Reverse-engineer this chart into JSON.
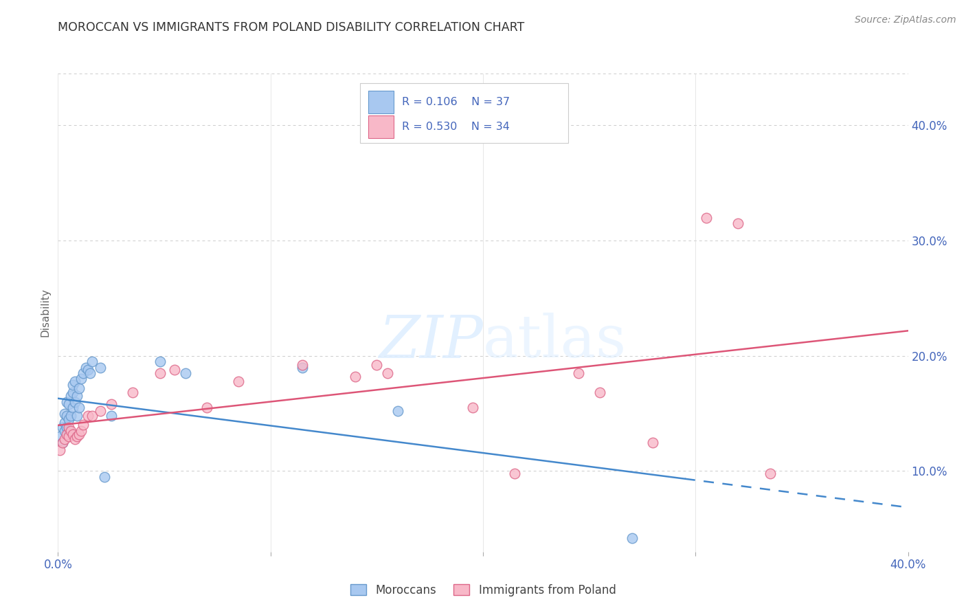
{
  "title": "MOROCCAN VS IMMIGRANTS FROM POLAND DISABILITY CORRELATION CHART",
  "source": "Source: ZipAtlas.com",
  "ylabel": "Disability",
  "ytick_vals": [
    0.1,
    0.2,
    0.3,
    0.4
  ],
  "xlim": [
    0.0,
    0.4
  ],
  "ylim": [
    0.03,
    0.445
  ],
  "legend_moroccan": "Moroccans",
  "legend_poland": "Immigrants from Poland",
  "r_moroccan": "0.106",
  "n_moroccan": "37",
  "r_poland": "0.530",
  "n_poland": "34",
  "color_moroccan_fill": "#a8c8f0",
  "color_moroccan_edge": "#6699cc",
  "color_poland_fill": "#f8b8c8",
  "color_poland_edge": "#dd6688",
  "color_moroccan_line": "#4488cc",
  "color_poland_line": "#dd5577",
  "color_axis_text": "#4466bb",
  "color_title": "#333333",
  "color_source": "#888888",
  "color_ylabel": "#666666",
  "background_color": "#ffffff",
  "grid_color": "#cccccc",
  "moroccan_x": [
    0.001,
    0.002,
    0.002,
    0.003,
    0.003,
    0.003,
    0.004,
    0.004,
    0.004,
    0.005,
    0.005,
    0.005,
    0.006,
    0.006,
    0.007,
    0.007,
    0.007,
    0.008,
    0.008,
    0.009,
    0.009,
    0.01,
    0.01,
    0.011,
    0.012,
    0.013,
    0.014,
    0.015,
    0.016,
    0.02,
    0.022,
    0.025,
    0.048,
    0.06,
    0.115,
    0.16,
    0.27
  ],
  "moroccan_y": [
    0.13,
    0.125,
    0.138,
    0.135,
    0.142,
    0.15,
    0.138,
    0.148,
    0.16,
    0.135,
    0.145,
    0.158,
    0.148,
    0.165,
    0.155,
    0.168,
    0.175,
    0.16,
    0.178,
    0.148,
    0.165,
    0.155,
    0.172,
    0.18,
    0.185,
    0.19,
    0.188,
    0.185,
    0.195,
    0.19,
    0.095,
    0.148,
    0.195,
    0.185,
    0.19,
    0.152,
    0.042
  ],
  "poland_x": [
    0.001,
    0.002,
    0.003,
    0.004,
    0.005,
    0.005,
    0.006,
    0.007,
    0.008,
    0.009,
    0.01,
    0.011,
    0.012,
    0.014,
    0.016,
    0.02,
    0.025,
    0.035,
    0.048,
    0.055,
    0.07,
    0.085,
    0.115,
    0.14,
    0.15,
    0.155,
    0.195,
    0.215,
    0.245,
    0.255,
    0.28,
    0.305,
    0.32,
    0.335
  ],
  "poland_y": [
    0.118,
    0.125,
    0.128,
    0.132,
    0.13,
    0.138,
    0.135,
    0.132,
    0.128,
    0.13,
    0.132,
    0.135,
    0.14,
    0.148,
    0.148,
    0.152,
    0.158,
    0.168,
    0.185,
    0.188,
    0.155,
    0.178,
    0.192,
    0.182,
    0.192,
    0.185,
    0.155,
    0.098,
    0.185,
    0.168,
    0.125,
    0.32,
    0.315,
    0.098
  ],
  "moroccan_line_solid_end": 0.295,
  "morocco_line_start_x": 0.0,
  "poland_line_start_x": 0.0,
  "poland_line_end_x": 0.4
}
